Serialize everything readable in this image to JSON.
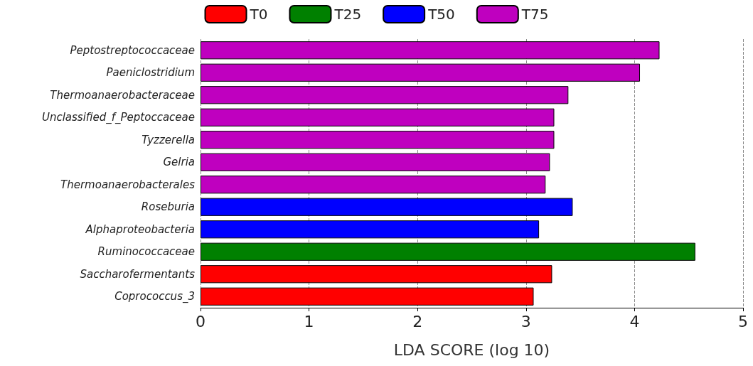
{
  "chart_data": {
    "type": "bar",
    "orientation": "horizontal",
    "xlabel": "LDA SCORE (log 10)",
    "categories": [
      "Peptostreptococcaceae",
      "Paeniclostridium",
      "Thermoanaerobacteraceae",
      "Unclassified_f_Peptoccaceae",
      "Tyzzerella",
      "Gelria",
      "Thermoanaerobacterales",
      "Roseburia",
      "Alphaproteobacteria",
      "Ruminococcaceae",
      "Saccharofermentants",
      "Coprococcus_3"
    ],
    "series": [
      {
        "name": "T0",
        "color": "#ff0000",
        "values": [
          null,
          null,
          null,
          null,
          null,
          null,
          null,
          null,
          null,
          null,
          3.24,
          3.07
        ]
      },
      {
        "name": "T25",
        "color": "#008000",
        "values": [
          null,
          null,
          null,
          null,
          null,
          null,
          null,
          null,
          null,
          4.56,
          null,
          null
        ]
      },
      {
        "name": "T50",
        "color": "#0000ff",
        "values": [
          null,
          null,
          null,
          null,
          null,
          null,
          null,
          3.43,
          3.12,
          null,
          null,
          null
        ]
      },
      {
        "name": "T75",
        "color": "#bf00bf",
        "values": [
          4.23,
          4.05,
          3.39,
          3.26,
          3.26,
          3.22,
          3.18,
          null,
          null,
          null,
          null,
          null
        ]
      }
    ],
    "xlim": [
      0,
      5
    ],
    "xticks": [
      0,
      1,
      2,
      3,
      4,
      5
    ],
    "grid": "x",
    "legend": "top"
  }
}
